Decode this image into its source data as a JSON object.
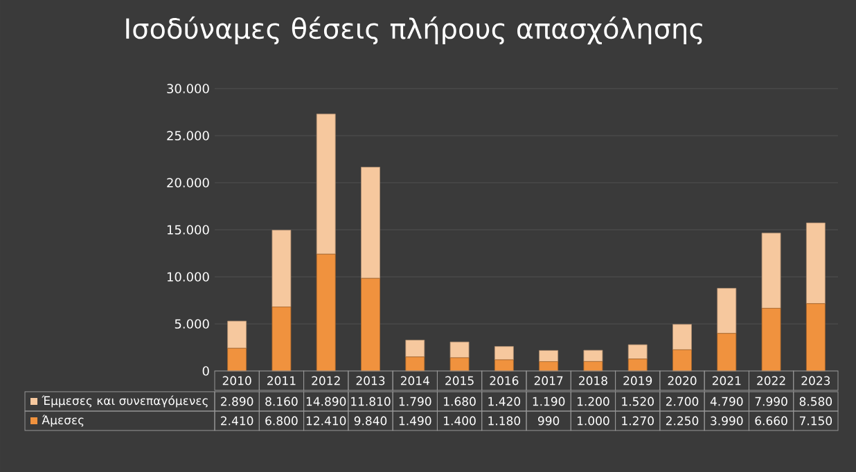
{
  "chart_data": {
    "type": "bar",
    "title": "Ισοδύναμες θέσεις πλήρους απασχόλησης",
    "stacked": true,
    "categories": [
      "2010",
      "2011",
      "2012",
      "2013",
      "2014",
      "2015",
      "2016",
      "2017",
      "2018",
      "2019",
      "2020",
      "2021",
      "2022",
      "2023"
    ],
    "series": [
      {
        "name": "Άμεσες",
        "color": "#f0923e",
        "values": [
          2410,
          6800,
          12410,
          9840,
          1490,
          1400,
          1180,
          990,
          1000,
          1270,
          2250,
          3990,
          6660,
          7150
        ],
        "value_labels": [
          "2.410",
          "6.800",
          "12.410",
          "9.840",
          "1.490",
          "1.400",
          "1.180",
          "990",
          "1.000",
          "1.270",
          "2.250",
          "3.990",
          "6.660",
          "7.150"
        ]
      },
      {
        "name": "Έμμεσες και συνεπαγόμενες",
        "color": "#f6c89e",
        "values": [
          2890,
          8160,
          14890,
          11810,
          1790,
          1680,
          1420,
          1190,
          1200,
          1520,
          2700,
          4790,
          7990,
          8580
        ],
        "value_labels": [
          "2.890",
          "8.160",
          "14.890",
          "11.810",
          "1.790",
          "1.680",
          "1.420",
          "1.190",
          "1.200",
          "1.520",
          "2.700",
          "4.790",
          "7.990",
          "8.580"
        ]
      }
    ],
    "ylim": [
      0,
      30000
    ],
    "yticks": [
      0,
      {
        "value": 5000,
        "label": "5.000"
      },
      {
        "value": 10000,
        "label": "10.000"
      },
      {
        "value": 15000,
        "label": "15.000"
      },
      {
        "value": 20000,
        "label": "20.000"
      },
      {
        "value": 25000,
        "label": "25.000"
      },
      {
        "value": 30000,
        "label": "30.000"
      }
    ],
    "grid": "y",
    "legend": "bottom"
  }
}
